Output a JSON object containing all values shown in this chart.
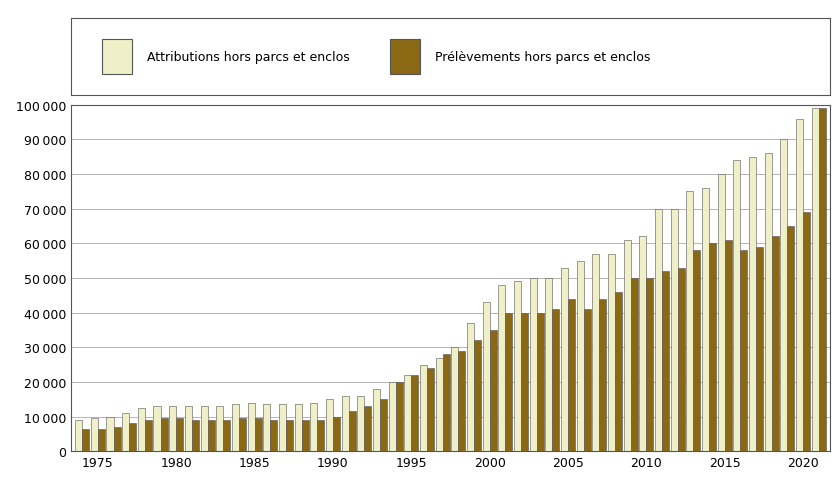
{
  "years": [
    1974,
    1975,
    1976,
    1977,
    1978,
    1979,
    1980,
    1981,
    1982,
    1983,
    1984,
    1985,
    1986,
    1987,
    1988,
    1989,
    1990,
    1991,
    1992,
    1993,
    1994,
    1995,
    1996,
    1997,
    1998,
    1999,
    2000,
    2001,
    2002,
    2003,
    2004,
    2005,
    2006,
    2007,
    2008,
    2009,
    2010,
    2011,
    2012,
    2013,
    2014,
    2015,
    2016,
    2017,
    2018,
    2019,
    2020,
    2021
  ],
  "attributions": [
    9000,
    9500,
    10000,
    11000,
    12500,
    13000,
    13000,
    13000,
    13000,
    13000,
    13500,
    14000,
    13500,
    13500,
    13500,
    14000,
    15000,
    16000,
    16000,
    18000,
    20000,
    22000,
    25000,
    27000,
    30000,
    37000,
    43000,
    48000,
    49000,
    50000,
    50000,
    53000,
    55000,
    57000,
    57000,
    61000,
    62000,
    70000,
    70000,
    75000,
    76000,
    80000,
    84000,
    85000,
    86000,
    90000,
    96000,
    99000
  ],
  "prelevements": [
    6500,
    6500,
    7000,
    8000,
    9000,
    9500,
    9500,
    9000,
    9000,
    9000,
    9500,
    9500,
    9000,
    9000,
    9000,
    9000,
    10000,
    11500,
    13000,
    15000,
    20000,
    22000,
    24000,
    28000,
    29000,
    32000,
    35000,
    40000,
    40000,
    40000,
    41000,
    44000,
    41000,
    44000,
    46000,
    50000,
    50000,
    52000,
    53000,
    58000,
    60000,
    61000,
    58000,
    59000,
    62000,
    65000,
    69000,
    99000
  ],
  "legend_label_1": "Attributions hors parcs et enclos",
  "legend_label_2": "Prélèvements hors parcs et enclos",
  "color_attributions": "#f0f0c8",
  "color_prelevements": "#8B6914",
  "bar_edge_color": "#555555",
  "ylim": [
    0,
    100000
  ],
  "ytick_step": 10000,
  "background_color": "#ffffff",
  "grid_color": "#aaaaaa",
  "xtick_years": [
    1975,
    1980,
    1985,
    1990,
    1995,
    2000,
    2005,
    2010,
    2015,
    2020
  ]
}
